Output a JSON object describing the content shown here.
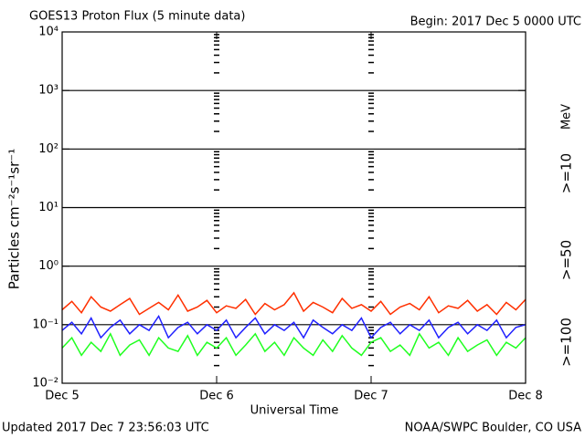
{
  "chart_data": {
    "type": "line",
    "title": "GOES13 Proton Flux (5 minute data)",
    "subtitle": "Begin: 2017 Dec 5 0000 UTC",
    "y_label": "Particles cm⁻²s⁻¹sr⁻¹",
    "x_label": "Universal Time",
    "legend_unit": "MeV",
    "footer_left": "Updated 2017 Dec  7 23:56:03 UTC",
    "footer_right": "NOAA/SWPC Boulder, CO USA",
    "log_y": true,
    "grid": true,
    "legend_position": "right",
    "xlim": [
      0,
      72
    ],
    "xticks": [
      {
        "value": 0,
        "label": "Dec 5"
      },
      {
        "value": 24,
        "label": "Dec 6"
      },
      {
        "value": 48,
        "label": "Dec 7"
      },
      {
        "value": 72,
        "label": "Dec 8"
      }
    ],
    "ylim": [
      0.01,
      10000
    ],
    "yticks": [
      {
        "value": 0.01,
        "label": "10⁻²"
      },
      {
        "value": 0.1,
        "label": "10⁻¹"
      },
      {
        "value": 1,
        "label": "10⁰"
      },
      {
        "value": 10,
        "label": "10¹"
      },
      {
        "value": 100,
        "label": "10²"
      },
      {
        "value": 1000,
        "label": "10³"
      },
      {
        "value": 10000,
        "label": "10⁴"
      }
    ],
    "x": [
      0,
      1.5,
      3,
      4.5,
      6,
      7.5,
      9,
      10.5,
      12,
      13.5,
      15,
      16.5,
      18,
      19.5,
      21,
      22.5,
      24,
      25.5,
      27,
      28.5,
      30,
      31.5,
      33,
      34.5,
      36,
      37.5,
      39,
      40.5,
      42,
      43.5,
      45,
      46.5,
      48,
      49.5,
      51,
      52.5,
      54,
      55.5,
      57,
      58.5,
      60,
      61.5,
      63,
      64.5,
      66,
      67.5,
      69,
      70.5,
      72
    ],
    "series": [
      {
        "name": ">=10",
        "color": "#ff3000",
        "values": [
          0.18,
          0.25,
          0.16,
          0.3,
          0.2,
          0.17,
          0.22,
          0.28,
          0.15,
          0.19,
          0.24,
          0.18,
          0.32,
          0.17,
          0.2,
          0.26,
          0.16,
          0.21,
          0.19,
          0.27,
          0.15,
          0.23,
          0.18,
          0.22,
          0.35,
          0.17,
          0.24,
          0.2,
          0.16,
          0.28,
          0.19,
          0.22,
          0.17,
          0.25,
          0.15,
          0.2,
          0.23,
          0.18,
          0.3,
          0.16,
          0.21,
          0.19,
          0.26,
          0.17,
          0.22,
          0.15,
          0.24,
          0.18,
          0.27
        ]
      },
      {
        "name": ">=50",
        "color": "#2020ff",
        "values": [
          0.08,
          0.11,
          0.07,
          0.13,
          0.06,
          0.09,
          0.12,
          0.07,
          0.1,
          0.08,
          0.14,
          0.06,
          0.09,
          0.11,
          0.07,
          0.1,
          0.08,
          0.12,
          0.06,
          0.09,
          0.13,
          0.07,
          0.1,
          0.08,
          0.11,
          0.06,
          0.12,
          0.09,
          0.07,
          0.1,
          0.08,
          0.13,
          0.06,
          0.09,
          0.11,
          0.07,
          0.1,
          0.08,
          0.12,
          0.06,
          0.09,
          0.11,
          0.07,
          0.1,
          0.08,
          0.12,
          0.06,
          0.09,
          0.1
        ]
      },
      {
        "name": ">=100",
        "color": "#20ff20",
        "values": [
          0.04,
          0.06,
          0.03,
          0.05,
          0.035,
          0.07,
          0.03,
          0.045,
          0.055,
          0.03,
          0.06,
          0.04,
          0.035,
          0.065,
          0.03,
          0.05,
          0.04,
          0.06,
          0.03,
          0.045,
          0.07,
          0.035,
          0.05,
          0.03,
          0.06,
          0.04,
          0.03,
          0.055,
          0.035,
          0.065,
          0.04,
          0.03,
          0.05,
          0.06,
          0.035,
          0.045,
          0.03,
          0.07,
          0.04,
          0.05,
          0.03,
          0.06,
          0.035,
          0.045,
          0.055,
          0.03,
          0.05,
          0.04,
          0.06
        ]
      }
    ]
  }
}
